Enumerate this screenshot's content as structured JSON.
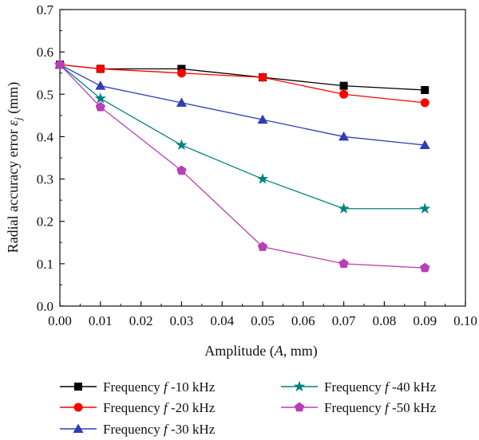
{
  "chart_data": {
    "type": "line",
    "xlabel": "Amplitude (A, mm)",
    "ylabel": "Radial accuracy error εj (mm)",
    "xlim": [
      0.0,
      0.1
    ],
    "ylim": [
      0.0,
      0.7
    ],
    "x_ticks": [
      "0.00",
      "0.01",
      "0.02",
      "0.03",
      "0.04",
      "0.05",
      "0.06",
      "0.07",
      "0.08",
      "0.09",
      "0.10"
    ],
    "y_ticks": [
      "0.0",
      "0.1",
      "0.2",
      "0.3",
      "0.4",
      "0.5",
      "0.6",
      "0.7"
    ],
    "grid": false,
    "legend_position": "bottom",
    "x": [
      0.0,
      0.01,
      0.03,
      0.05,
      0.07,
      0.09
    ],
    "series": [
      {
        "name": "Frequency f -10 kHz",
        "color": "#000000",
        "marker": "square",
        "values": [
          0.57,
          0.56,
          0.56,
          0.54,
          0.52,
          0.51
        ]
      },
      {
        "name": "Frequency f -20 kHz",
        "color": "#ff0000",
        "marker": "circle",
        "values": [
          0.57,
          0.56,
          0.55,
          0.54,
          0.5,
          0.48
        ]
      },
      {
        "name": "Frequency f -30 kHz",
        "color": "#2e3db4",
        "marker": "triangle",
        "values": [
          0.57,
          0.52,
          0.48,
          0.44,
          0.4,
          0.38
        ]
      },
      {
        "name": "Frequency f -40 kHz",
        "color": "#00827f",
        "marker": "star",
        "values": [
          0.57,
          0.49,
          0.38,
          0.3,
          0.23,
          0.23
        ]
      },
      {
        "name": "Frequency f -50 kHz",
        "color": "#b83fb5",
        "marker": "pentagon",
        "values": [
          0.57,
          0.47,
          0.32,
          0.14,
          0.1,
          0.09
        ]
      }
    ]
  }
}
